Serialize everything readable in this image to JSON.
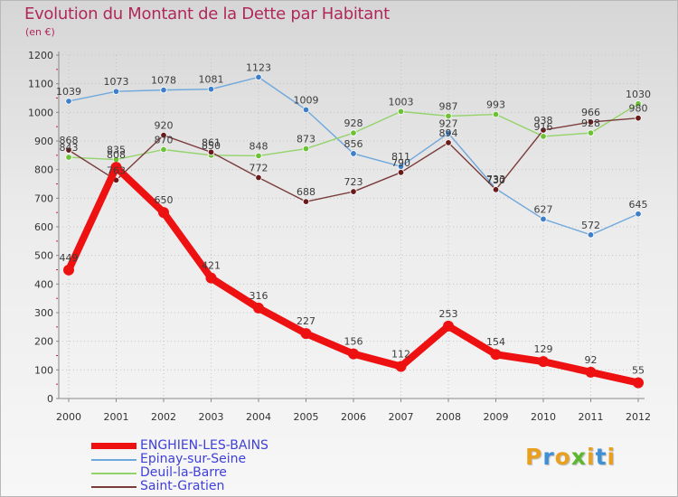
{
  "title": "Evolution du Montant de la Dette par Habitant",
  "subtitle": "(en €)",
  "logo": {
    "letters": [
      "P",
      "r",
      "o",
      "x",
      "i",
      "t",
      "i"
    ],
    "colors": [
      "#e8a020",
      "#3d8fd6",
      "#e8a020",
      "#5cb82e",
      "#e8a020",
      "#3d8fd6",
      "#e8a020"
    ]
  },
  "chart_data": {
    "type": "line",
    "title": "Evolution du Montant de la Dette par Habitant",
    "ylabel": "(en €)",
    "xlabel": "",
    "x": [
      "2000",
      "2001",
      "2002",
      "2003",
      "2004",
      "2005",
      "2006",
      "2007",
      "2008",
      "2009",
      "2010",
      "2011",
      "2012"
    ],
    "ylim": [
      0,
      1200
    ],
    "yticks": [
      "0",
      "100",
      "200",
      "300",
      "400",
      "500",
      "600",
      "700",
      "800",
      "900",
      "1000",
      "1100",
      "1200"
    ],
    "grid": true,
    "legend_position": "bottom-left",
    "series": [
      {
        "name": "ENGHIEN-LES-BAINS",
        "color": "#ee1111",
        "marker": "#ee1111",
        "values": [
          449,
          808,
          650,
          421,
          316,
          227,
          156,
          112,
          253,
          154,
          129,
          92,
          55
        ],
        "labels": [
          "449",
          "808",
          "650",
          "421",
          "316",
          "227",
          "156",
          "112",
          "253",
          "154",
          "129",
          "92",
          "55"
        ]
      },
      {
        "name": "Epinay-sur-Seine",
        "color": "#6fa8dc",
        "marker": "#3d7fc9",
        "values": [
          1039,
          1073,
          1078,
          1081,
          1123,
          1009,
          856,
          811,
          927,
          733,
          627,
          572,
          645
        ],
        "labels": [
          "1039",
          "1073",
          "1078",
          "1081",
          "1123",
          "1009",
          "856",
          "811",
          "927",
          "733",
          "627",
          "572",
          "645"
        ]
      },
      {
        "name": "Deuil-la-Barre",
        "color": "#93d36a",
        "marker": "#6cc235",
        "values": [
          843,
          835,
          870,
          850,
          848,
          873,
          928,
          1003,
          987,
          993,
          916,
          928,
          1030
        ],
        "labels": [
          "843",
          "835",
          "870",
          "850",
          "848",
          "873",
          "928",
          "1003",
          "987",
          "993",
          "916",
          "928",
          "1030"
        ]
      },
      {
        "name": "Saint-Gratien",
        "color": "#7a3b3b",
        "marker": "#6a1a1a",
        "values": [
          868,
          763,
          920,
          861,
          772,
          688,
          723,
          790,
          894,
          730,
          938,
          966,
          980
        ],
        "labels": [
          "868",
          "763",
          "920",
          "861",
          "772",
          "688",
          "723",
          "790",
          "894",
          "730",
          "938",
          "966",
          "980"
        ]
      }
    ]
  }
}
